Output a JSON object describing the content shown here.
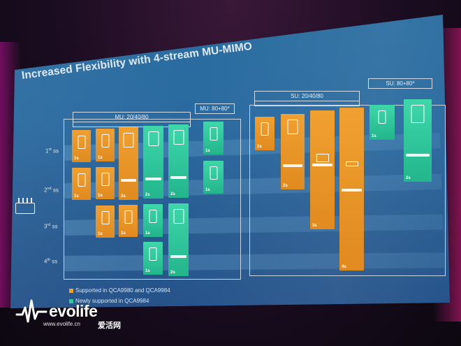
{
  "slide": {
    "title": "Increased Flexibility with 4-stream MU-MIMO",
    "headers": {
      "mu_20_40_80": "MU: 20/40/80",
      "mu_80_80": "MU: 80+80*",
      "su_20_40_80": "SU: 20/40/80",
      "su_80_80": "SU: 80+80*"
    },
    "streams": {
      "ss1": "1",
      "ss2": "2",
      "ss3": "3",
      "ss4": "4",
      "ordinal_1": "st",
      "ordinal_2": "nd",
      "ordinal_3": "rd",
      "ordinal_4": "th",
      "unit": "ss"
    },
    "tile_labels": {
      "one": "1s",
      "two": "2s",
      "three": "3s",
      "four": "4s"
    },
    "legend": {
      "orange_text": "Supported in QCA9980 and QCA9984",
      "green_text": "Newly supported in QCA9984"
    },
    "colors": {
      "orange": "#f0a030",
      "green": "#30c89c",
      "background": "#2a6aa0"
    }
  },
  "watermark": {
    "brand": "evolife",
    "url": "www.evolife.cn",
    "chinese": "爱活网"
  }
}
